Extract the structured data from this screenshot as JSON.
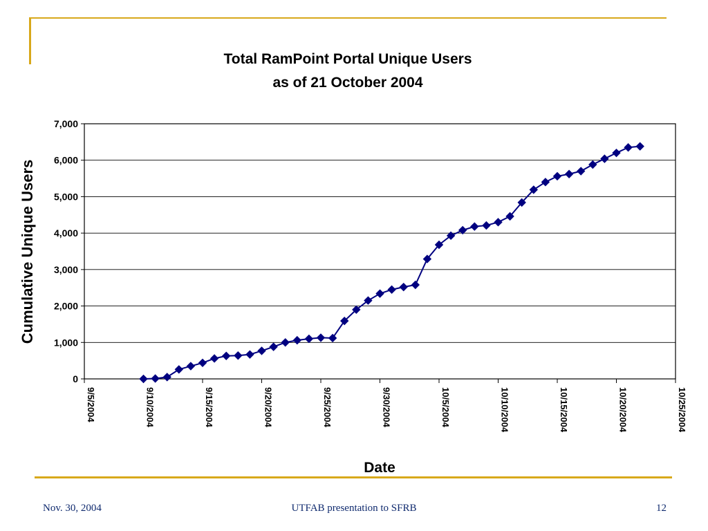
{
  "colors": {
    "accent": "#d8a81a",
    "series": "#000080",
    "footer_text": "#0f2a6e"
  },
  "footer": {
    "date": "Nov. 30, 2004",
    "center": "UTFAB presentation to SFRB",
    "page": "12"
  },
  "chart_data": {
    "type": "line",
    "title": [
      "Total RamPoint Portal Unique Users",
      "as of 21 October 2004"
    ],
    "xlabel": "Date",
    "ylabel": "Cumulative Unique Users",
    "x_ticks": [
      "9/5/2004",
      "9/10/2004",
      "9/15/2004",
      "9/20/2004",
      "9/25/2004",
      "9/30/2004",
      "10/5/2004",
      "10/10/2004",
      "10/15/2004",
      "10/20/2004",
      "10/25/2004"
    ],
    "x_range": [
      "2004-09-05",
      "2004-10-25"
    ],
    "y_ticks": [
      "0",
      "1,000",
      "2,000",
      "3,000",
      "4,000",
      "5,000",
      "6,000",
      "7,000"
    ],
    "ylim": [
      0,
      7000
    ],
    "grid": "horizontal",
    "marker": "diamond",
    "series": [
      {
        "x": [
          "2004-09-10",
          "2004-09-11",
          "2004-09-12",
          "2004-09-13",
          "2004-09-14",
          "2004-09-15",
          "2004-09-16",
          "2004-09-17",
          "2004-09-18",
          "2004-09-19",
          "2004-09-20",
          "2004-09-21",
          "2004-09-22",
          "2004-09-23",
          "2004-09-24",
          "2004-09-25",
          "2004-09-26",
          "2004-09-27",
          "2004-09-28",
          "2004-09-29",
          "2004-09-30",
          "2004-10-01",
          "2004-10-02",
          "2004-10-03",
          "2004-10-04",
          "2004-10-05",
          "2004-10-06",
          "2004-10-07",
          "2004-10-08",
          "2004-10-09",
          "2004-10-10",
          "2004-10-11",
          "2004-10-12",
          "2004-10-13",
          "2004-10-14",
          "2004-10-15",
          "2004-10-16",
          "2004-10-17",
          "2004-10-18",
          "2004-10-19",
          "2004-10-20",
          "2004-10-21",
          "2004-10-22"
        ],
        "y": [
          0,
          10,
          50,
          260,
          350,
          440,
          560,
          630,
          640,
          670,
          770,
          880,
          1000,
          1060,
          1100,
          1130,
          1120,
          1590,
          1900,
          2150,
          2340,
          2450,
          2520,
          2580,
          3290,
          3680,
          3930,
          4080,
          4180,
          4210,
          4300,
          4460,
          4840,
          5190,
          5400,
          5560,
          5620,
          5700,
          5880,
          6040,
          6200,
          6350,
          6380
        ]
      }
    ]
  }
}
